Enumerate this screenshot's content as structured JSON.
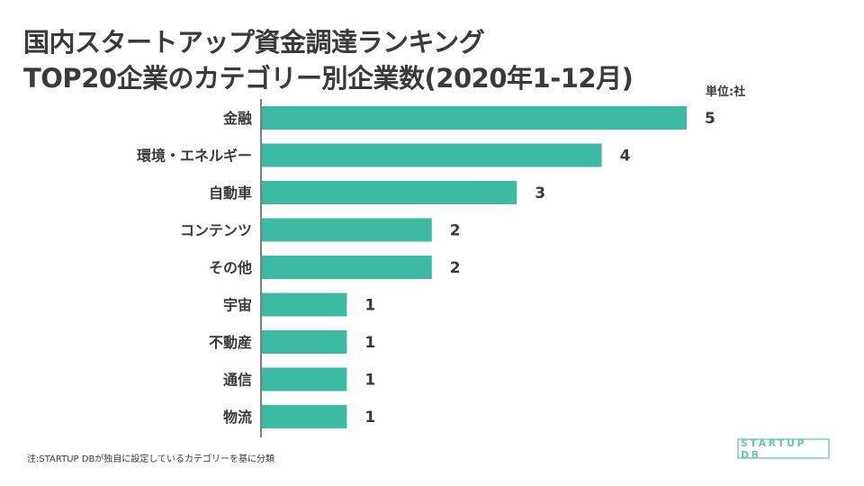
{
  "title": {
    "line1": "国内スタートアップ資金調達ランキング",
    "line2": "TOP20企業のカテゴリー別企業数(2020年1-12月)"
  },
  "unit_label": "単位:社",
  "note": "注:STARTUP DBが独自に設定しているカテゴリーを基に分類",
  "logo_text": "STARTUP DB",
  "colors": {
    "bar": "#3dbaa2",
    "axis": "#555555",
    "text": "#3a3a3a"
  },
  "chart_data": {
    "type": "bar",
    "orientation": "horizontal",
    "title": "国内スタートアップ資金調達ランキング TOP20企業のカテゴリー別企業数(2020年1-12月)",
    "unit": "社",
    "categories": [
      "金融",
      "環境・エネルギー",
      "自動車",
      "コンテンツ",
      "その他",
      "宇宙",
      "不動産",
      "通信",
      "物流"
    ],
    "values": [
      5,
      4,
      3,
      2,
      2,
      1,
      1,
      1,
      1
    ],
    "xlim": [
      0,
      5
    ],
    "grid": false,
    "legend": "none"
  }
}
